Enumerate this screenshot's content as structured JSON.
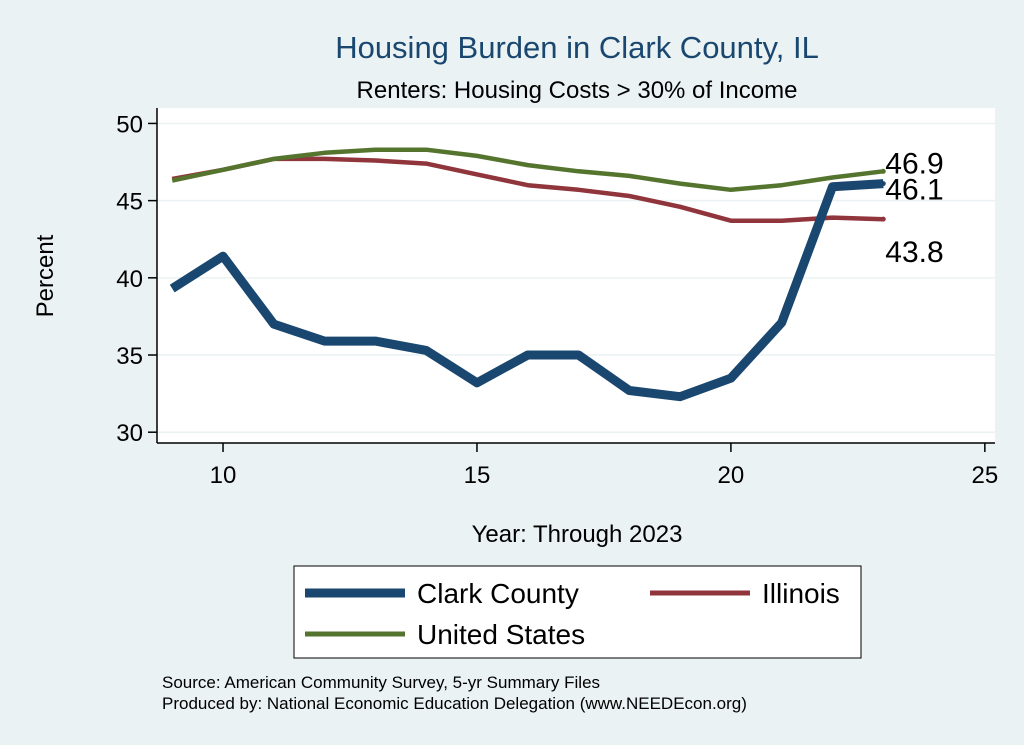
{
  "chart_data": {
    "type": "line",
    "title": "Housing Burden in Clark County, IL",
    "subtitle": "Renters: Housing Costs > 30% of Income",
    "xlabel": "Year: Through 2023",
    "ylabel": "Percent",
    "xlim": [
      8.7,
      25.2
    ],
    "ylim": [
      29.3,
      51
    ],
    "xticks": [
      "10",
      "15",
      "20",
      "25"
    ],
    "yticks": [
      "30",
      "35",
      "40",
      "45",
      "50"
    ],
    "xtick_values": [
      10,
      15,
      20,
      25
    ],
    "ytick_values": [
      30,
      35,
      40,
      45,
      50
    ],
    "grid": true,
    "x": [
      9,
      10,
      11,
      12,
      13,
      14,
      15,
      16,
      17,
      18,
      19,
      20,
      21,
      22,
      23
    ],
    "series": [
      {
        "name": "Clark County",
        "color": "#1a476f",
        "values": [
          39.3,
          41.4,
          37.0,
          35.9,
          35.9,
          35.3,
          33.2,
          35.0,
          35.0,
          32.7,
          32.3,
          33.5,
          37.1,
          45.9,
          46.1
        ],
        "end_label": "46.1"
      },
      {
        "name": "Illinois",
        "color": "#90353b",
        "values": [
          46.4,
          47.0,
          47.7,
          47.7,
          47.6,
          47.4,
          46.7,
          46.0,
          45.7,
          45.3,
          44.6,
          43.7,
          43.7,
          43.9,
          43.8
        ],
        "end_label": "43.8"
      },
      {
        "name": "United States",
        "color": "#55752f",
        "values": [
          46.3,
          47.0,
          47.7,
          48.1,
          48.3,
          48.3,
          47.9,
          47.3,
          46.9,
          46.6,
          46.1,
          45.7,
          46.0,
          46.5,
          46.9
        ],
        "end_label": "46.9"
      }
    ],
    "legend": {
      "position": "bottom",
      "items": [
        "Clark County",
        "Illinois",
        "United States"
      ]
    },
    "notes": [
      "Source: American Community Survey, 5-yr Summary Files",
      "Produced by: National Economic Education Delegation (www.NEEDEcon.org)"
    ]
  }
}
